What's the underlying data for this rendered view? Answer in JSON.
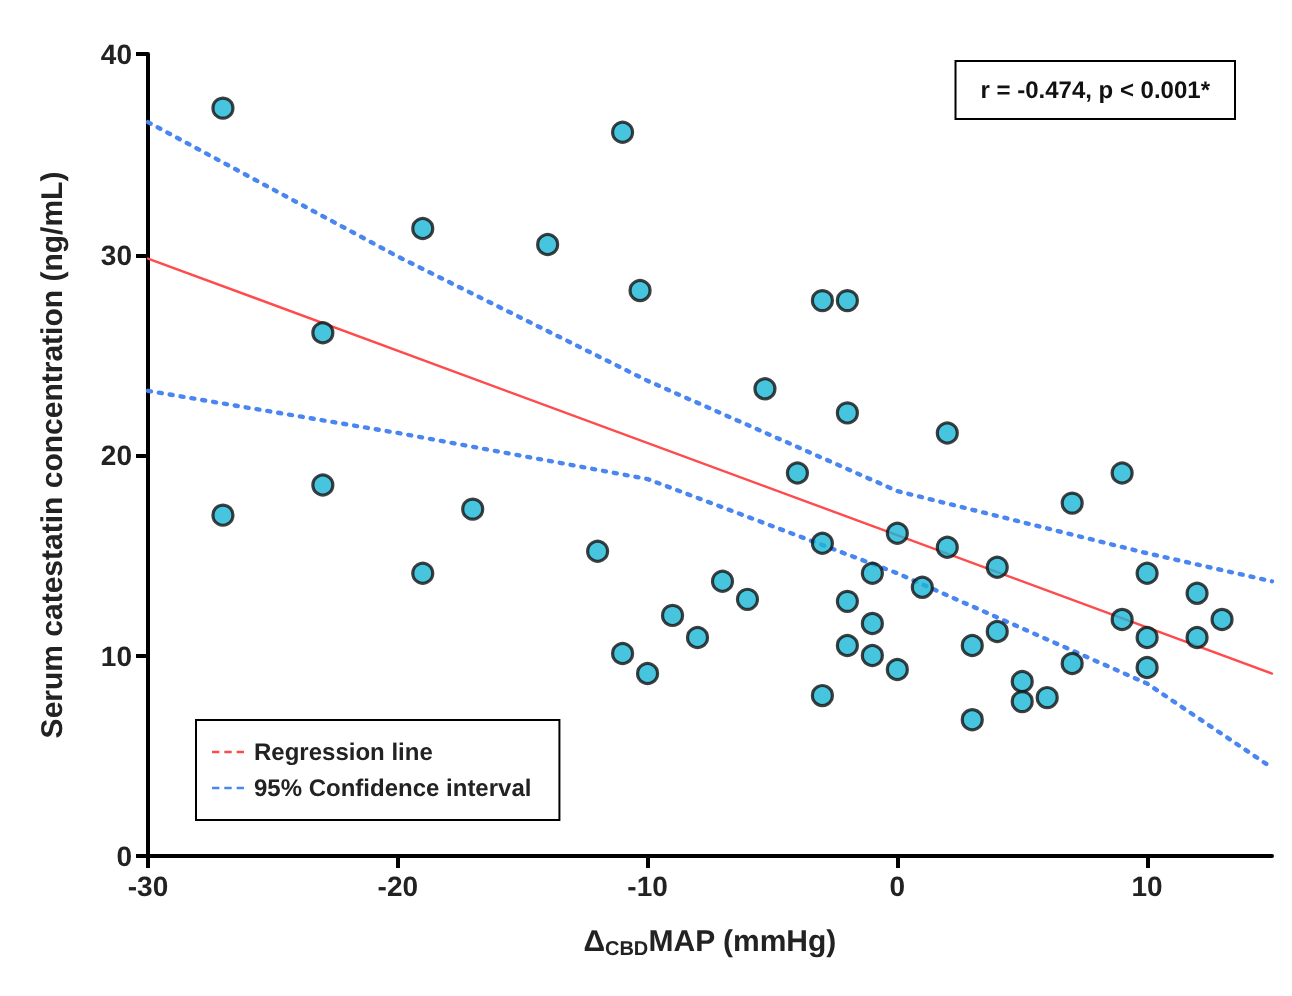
{
  "chart_data": {
    "type": "scatter",
    "xlabel": "Δ$_{CBD}$MAP (mmHg)",
    "ylabel": "Serum catestatin concentration (ng/mL)",
    "annotations": [
      "r = -0.474, p < 0.001*"
    ],
    "xlim": [
      -30,
      15
    ],
    "xticks": [
      -30,
      -20,
      -10,
      0,
      10
    ],
    "ylim": [
      0,
      40
    ],
    "yticks": [
      0,
      10,
      20,
      30,
      40
    ],
    "grid": false,
    "legend": "bottom left",
    "marker": "circle",
    "series": [
      {
        "color": "#1ab6d6",
        "x": [
          -27,
          -27,
          -23,
          -23,
          -19,
          -19,
          -17,
          -14,
          -12,
          -11,
          -11,
          -10.3,
          -10,
          -9,
          -8,
          -7,
          -6,
          -5.3,
          -4,
          -3,
          -2,
          -2,
          -3,
          -3,
          -2,
          -2,
          -1,
          -1,
          -1,
          0,
          0,
          1,
          2,
          2,
          3,
          3,
          4,
          4,
          5,
          5,
          6,
          7,
          7,
          9,
          9,
          10,
          10,
          10,
          12,
          12,
          13
        ],
        "values": [
          37.3,
          17,
          26.1,
          18.5,
          31.3,
          14.1,
          17.3,
          30.5,
          15.2,
          36.1,
          10.1,
          28.2,
          9.1,
          12,
          10.9,
          13.7,
          12.8,
          23.3,
          19.1,
          27.7,
          27.7,
          22.1,
          15.6,
          8,
          12.7,
          10.5,
          14.1,
          11.6,
          10,
          16.1,
          9.3,
          13.4,
          21.1,
          15.4,
          10.5,
          6.8,
          14.4,
          11.2,
          8.7,
          7.7,
          7.9,
          17.6,
          9.6,
          19.1,
          11.8,
          14.1,
          10.9,
          9.4,
          13.1,
          10.9,
          11.8
        ]
      },
      {
        "type": "line",
        "name": "Regression line",
        "color": "#ff4b4b",
        "line_style": "solid",
        "marker": "none",
        "x": [
          -30,
          15
        ],
        "values": [
          29.8,
          9.1
        ]
      },
      {
        "type": "line",
        "name": "95% Confidence interval",
        "color": "#4a86f0",
        "line_style": "dotted",
        "marker": "none",
        "x": [
          -30,
          -20,
          -10,
          0,
          10,
          15
        ],
        "values": [
          36.6,
          29.9,
          23.7,
          18.2,
          15.1,
          13.7
        ]
      },
      {
        "type": "line",
        "color": "#4a86f0",
        "line_style": "dotted",
        "marker": "none",
        "x": [
          -30,
          -20,
          -10,
          0,
          10,
          15
        ],
        "values": [
          23.2,
          21.1,
          18.8,
          14.1,
          8.6,
          4.4
        ]
      }
    ]
  }
}
